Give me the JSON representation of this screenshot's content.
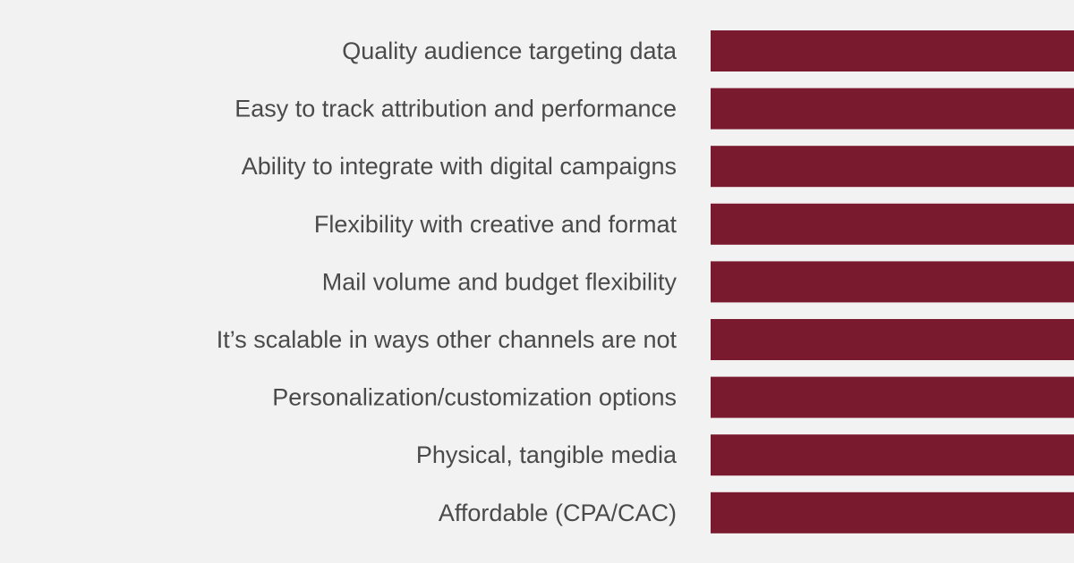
{
  "chart_data": {
    "type": "bar",
    "orientation": "horizontal",
    "title": "",
    "xlabel": "",
    "ylabel": "",
    "grid": false,
    "categories": [
      "Quality audience targeting data",
      "Easy to track attribution and performance",
      "Ability to integrate with digital campaigns",
      "Flexibility with creative and format",
      "Mail volume and budget flexibility",
      "It’s scalable in ways other channels are not",
      "Personalization/customization options",
      "Physical, tangible media",
      "Affordable (CPA/CAC)"
    ],
    "series": [
      {
        "name": "",
        "color": "#7a1a2e",
        "values": [
          null,
          null,
          null,
          null,
          null,
          null,
          null,
          null,
          null
        ]
      }
    ],
    "note": "Bars extend past the right edge of the cropped image; values are not visible."
  },
  "colors": {
    "background": "#f2f2f2",
    "bar": "#7a1a2e",
    "label_text": "#4a4a4a"
  }
}
